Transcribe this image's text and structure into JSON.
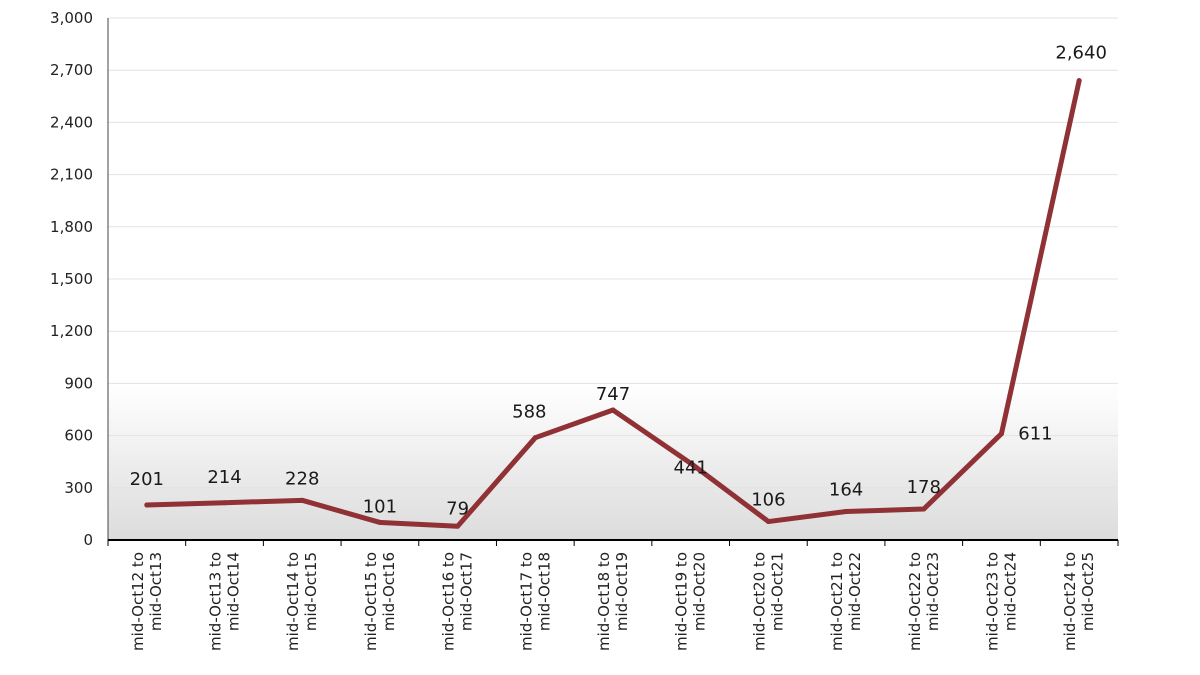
{
  "chart_data": {
    "type": "line",
    "categories": [
      [
        "mid-Oct12 to",
        "mid-Oct13"
      ],
      [
        "mid-Oct13 to",
        "mid-Oct14"
      ],
      [
        "mid-Oct14 to",
        "mid-Oct15"
      ],
      [
        "mid-Oct15 to",
        "mid-Oct16"
      ],
      [
        "mid-Oct16 to",
        "mid-Oct17"
      ],
      [
        "mid-Oct17 to",
        "mid-Oct18"
      ],
      [
        "mid-Oct18 to",
        "mid-Oct19"
      ],
      [
        "mid-Oct19 to",
        "mid-Oct20"
      ],
      [
        "mid-Oct20 to",
        "mid-Oct21"
      ],
      [
        "mid-Oct21 to",
        "mid-Oct22"
      ],
      [
        "mid-Oct22 to",
        "mid-Oct23"
      ],
      [
        "mid-Oct23 to",
        "mid-Oct24"
      ],
      [
        "mid-Oct24 to",
        "mid-Oct25"
      ]
    ],
    "values": [
      201,
      214,
      228,
      101,
      79,
      588,
      747,
      441,
      106,
      164,
      178,
      611,
      2640
    ],
    "data_labels": [
      "201",
      "214",
      "228",
      "101",
      "79",
      "588",
      "747",
      "441",
      "106",
      "164",
      "178",
      "611",
      "2,640"
    ],
    "yticks": [
      0,
      300,
      600,
      900,
      1200,
      1500,
      1800,
      2100,
      2400,
      2700,
      3000
    ],
    "ytick_labels": [
      "0",
      "300",
      "600",
      "900",
      "1,200",
      "1,500",
      "1,800",
      "2,100",
      "2,400",
      "2,700",
      "3,000"
    ],
    "ylim": [
      0,
      3000
    ],
    "title": "",
    "xlabel": "",
    "ylabel": "",
    "grid": true,
    "legend": "none",
    "colors": {
      "line": "#8f3135",
      "grid": "#e3e3e3",
      "axis": "#444444",
      "band_top": "#ffffff",
      "band_bottom": "#dcdcdc"
    }
  }
}
